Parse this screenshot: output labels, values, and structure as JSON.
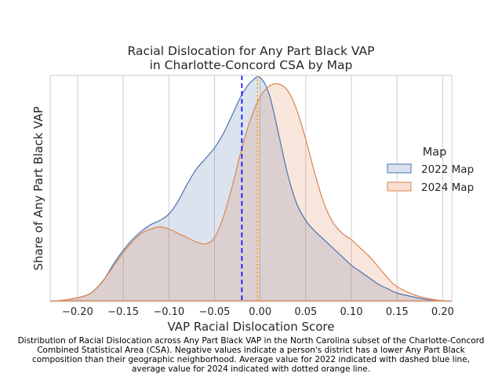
{
  "chart_data": {
    "type": "area",
    "title_lines": [
      "Racial Dislocation for Any Part Black VAP",
      "in Charlotte-Concord CSA by Map"
    ],
    "xlabel": "VAP Racial Dislocation Score",
    "ylabel": "Share of Any Part Black VAP",
    "xlim": [
      -0.23,
      0.21
    ],
    "ylim": [
      0,
      1.06
    ],
    "x_ticks": [
      -0.2,
      -0.15,
      -0.1,
      -0.05,
      0.0,
      0.05,
      0.1,
      0.15,
      0.2
    ],
    "x_tick_labels": [
      "−0.20",
      "−0.15",
      "−0.10",
      "−0.05",
      "0.00",
      "0.05",
      "0.10",
      "0.15",
      "0.20"
    ],
    "grid": "vertical",
    "legend": {
      "title": "Map",
      "placement": "right",
      "entries": [
        "2022 Map",
        "2024 Map"
      ]
    },
    "series": [
      {
        "name": "2022 Map",
        "color": "#4c72b0",
        "fill": "#dbe2ef",
        "x": [
          -0.23,
          -0.21,
          -0.19,
          -0.18,
          -0.17,
          -0.16,
          -0.15,
          -0.14,
          -0.13,
          -0.12,
          -0.11,
          -0.1,
          -0.09,
          -0.08,
          -0.07,
          -0.06,
          -0.05,
          -0.04,
          -0.03,
          -0.02,
          -0.01,
          0.0,
          0.01,
          0.02,
          0.03,
          0.04,
          0.05,
          0.06,
          0.07,
          0.08,
          0.09,
          0.1,
          0.11,
          0.12,
          0.13,
          0.14,
          0.15,
          0.17,
          0.19,
          0.21
        ],
        "y": [
          0.0,
          0.01,
          0.03,
          0.06,
          0.11,
          0.18,
          0.24,
          0.29,
          0.33,
          0.36,
          0.38,
          0.41,
          0.47,
          0.55,
          0.62,
          0.67,
          0.72,
          0.79,
          0.88,
          0.97,
          1.03,
          1.05,
          0.97,
          0.79,
          0.6,
          0.46,
          0.38,
          0.33,
          0.29,
          0.25,
          0.21,
          0.17,
          0.14,
          0.11,
          0.08,
          0.06,
          0.04,
          0.02,
          0.005,
          0.0
        ]
      },
      {
        "name": "2024 Map",
        "color": "#dd8452",
        "fill": "#f8dfd2",
        "x": [
          -0.23,
          -0.21,
          -0.19,
          -0.18,
          -0.17,
          -0.16,
          -0.15,
          -0.14,
          -0.13,
          -0.12,
          -0.11,
          -0.1,
          -0.09,
          -0.08,
          -0.07,
          -0.06,
          -0.05,
          -0.04,
          -0.03,
          -0.02,
          -0.01,
          0.0,
          0.01,
          0.02,
          0.03,
          0.04,
          0.05,
          0.06,
          0.07,
          0.08,
          0.09,
          0.1,
          0.11,
          0.12,
          0.13,
          0.14,
          0.15,
          0.17,
          0.19,
          0.21
        ],
        "y": [
          0.0,
          0.01,
          0.03,
          0.06,
          0.11,
          0.17,
          0.23,
          0.28,
          0.32,
          0.34,
          0.35,
          0.34,
          0.32,
          0.3,
          0.28,
          0.27,
          0.3,
          0.4,
          0.55,
          0.72,
          0.86,
          0.96,
          1.01,
          1.02,
          0.99,
          0.9,
          0.76,
          0.6,
          0.46,
          0.37,
          0.32,
          0.29,
          0.25,
          0.21,
          0.16,
          0.11,
          0.07,
          0.03,
          0.01,
          0.0
        ]
      }
    ],
    "reference_lines": [
      {
        "x": -0.02,
        "style": "dashed",
        "color": "#0000ff"
      },
      {
        "x": -0.003,
        "style": "dotted",
        "color": "#ffa500"
      }
    ]
  },
  "caption_lines": [
    "Distribution of Racial Dislocation across Any Part Black VAP in the North Carolina subset of the Charlotte-Concord",
    "Combined Statistical Area (CSA). Negative values indicate a person's district has a lower Any Part Black",
    "composition than their geographic neighborhood. Average value for 2022 indicated with dashed blue line,",
    "average value for 2024 indicated with dotted orange line."
  ]
}
